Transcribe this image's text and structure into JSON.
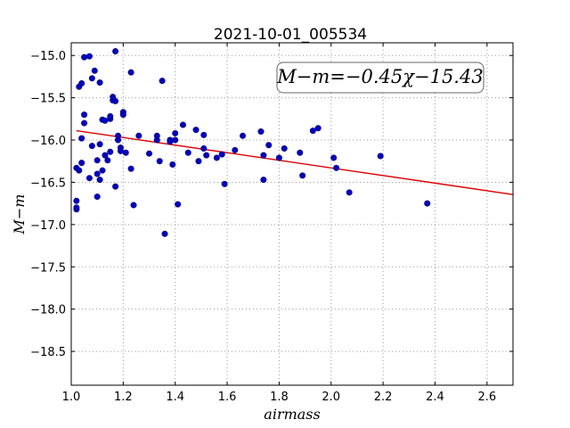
{
  "chart_data": {
    "type": "scatter",
    "title": "2021-10-01_005534",
    "xlabel": "airmass",
    "ylabel": "M−m",
    "xlim": [
      1.0,
      2.7
    ],
    "ylim": [
      -18.9,
      -14.85
    ],
    "y_inverted": true,
    "grid": true,
    "x_ticks": [
      "1.0",
      "1.2",
      "1.4",
      "1.6",
      "1.8",
      "2.0",
      "2.2",
      "2.4",
      "2.6"
    ],
    "x_tick_values": [
      1.0,
      1.2,
      1.4,
      1.6,
      1.8,
      2.0,
      2.2,
      2.4,
      2.6
    ],
    "y_ticks": [
      "−15.0",
      "−15.5",
      "−16.0",
      "−16.5",
      "−17.0",
      "−17.5",
      "−18.0",
      "−18.5"
    ],
    "y_tick_values": [
      -15.0,
      -15.5,
      -16.0,
      -16.5,
      -17.0,
      -17.5,
      -18.0,
      -18.5
    ],
    "annotation": "M−m=−0.45χ−15.43",
    "fit": {
      "slope": -0.45,
      "intercept": -15.43,
      "x_range": [
        1.02,
        2.7
      ],
      "color": "#dd0000"
    },
    "marker_color": "#0000c8",
    "points": [
      [
        1.02,
        -16.82
      ],
      [
        1.02,
        -16.8
      ],
      [
        1.02,
        -16.72
      ],
      [
        1.02,
        -16.33
      ],
      [
        1.03,
        -16.36
      ],
      [
        1.03,
        -15.37
      ],
      [
        1.04,
        -15.33
      ],
      [
        1.04,
        -16.27
      ],
      [
        1.04,
        -15.98
      ],
      [
        1.05,
        -15.8
      ],
      [
        1.05,
        -15.7
      ],
      [
        1.05,
        -15.02
      ],
      [
        1.07,
        -15.01
      ],
      [
        1.07,
        -16.45
      ],
      [
        1.08,
        -15.27
      ],
      [
        1.08,
        -16.07
      ],
      [
        1.09,
        -15.18
      ],
      [
        1.1,
        -16.24
      ],
      [
        1.1,
        -16.4
      ],
      [
        1.1,
        -16.67
      ],
      [
        1.11,
        -15.32
      ],
      [
        1.11,
        -16.05
      ],
      [
        1.11,
        -16.47
      ],
      [
        1.12,
        -15.76
      ],
      [
        1.12,
        -16.36
      ],
      [
        1.13,
        -16.18
      ],
      [
        1.13,
        -15.77
      ],
      [
        1.14,
        -16.24
      ],
      [
        1.15,
        -15.75
      ],
      [
        1.15,
        -15.72
      ],
      [
        1.15,
        -16.14
      ],
      [
        1.16,
        -15.53
      ],
      [
        1.16,
        -15.49
      ],
      [
        1.17,
        -16.55
      ],
      [
        1.17,
        -15.54
      ],
      [
        1.17,
        -14.95
      ],
      [
        1.18,
        -16.0
      ],
      [
        1.18,
        -15.95
      ],
      [
        1.19,
        -16.09
      ],
      [
        1.19,
        -16.13
      ],
      [
        1.2,
        -15.67
      ],
      [
        1.2,
        -15.7
      ],
      [
        1.21,
        -16.15
      ],
      [
        1.23,
        -15.2
      ],
      [
        1.23,
        -16.34
      ],
      [
        1.24,
        -16.77
      ],
      [
        1.26,
        -15.95
      ],
      [
        1.3,
        -16.16
      ],
      [
        1.33,
        -16.0
      ],
      [
        1.33,
        -15.95
      ],
      [
        1.34,
        -16.25
      ],
      [
        1.35,
        -15.3
      ],
      [
        1.36,
        -17.11
      ],
      [
        1.38,
        -16.0
      ],
      [
        1.38,
        -16.02
      ],
      [
        1.39,
        -16.29
      ],
      [
        1.4,
        -15.92
      ],
      [
        1.4,
        -16.0
      ],
      [
        1.41,
        -16.76
      ],
      [
        1.43,
        -15.82
      ],
      [
        1.45,
        -16.15
      ],
      [
        1.48,
        -15.88
      ],
      [
        1.49,
        -16.25
      ],
      [
        1.51,
        -16.1
      ],
      [
        1.51,
        -15.94
      ],
      [
        1.52,
        -16.18
      ],
      [
        1.56,
        -16.21
      ],
      [
        1.58,
        -16.17
      ],
      [
        1.59,
        -16.52
      ],
      [
        1.63,
        -16.12
      ],
      [
        1.66,
        -15.95
      ],
      [
        1.73,
        -15.9
      ],
      [
        1.74,
        -16.18
      ],
      [
        1.74,
        -16.47
      ],
      [
        1.76,
        -16.06
      ],
      [
        1.8,
        -16.21
      ],
      [
        1.82,
        -16.1
      ],
      [
        1.88,
        -16.15
      ],
      [
        1.89,
        -16.42
      ],
      [
        1.93,
        -15.89
      ],
      [
        1.95,
        -15.86
      ],
      [
        2.01,
        -16.21
      ],
      [
        2.02,
        -16.33
      ],
      [
        2.07,
        -16.62
      ],
      [
        2.19,
        -16.19
      ],
      [
        2.37,
        -16.75
      ]
    ]
  }
}
